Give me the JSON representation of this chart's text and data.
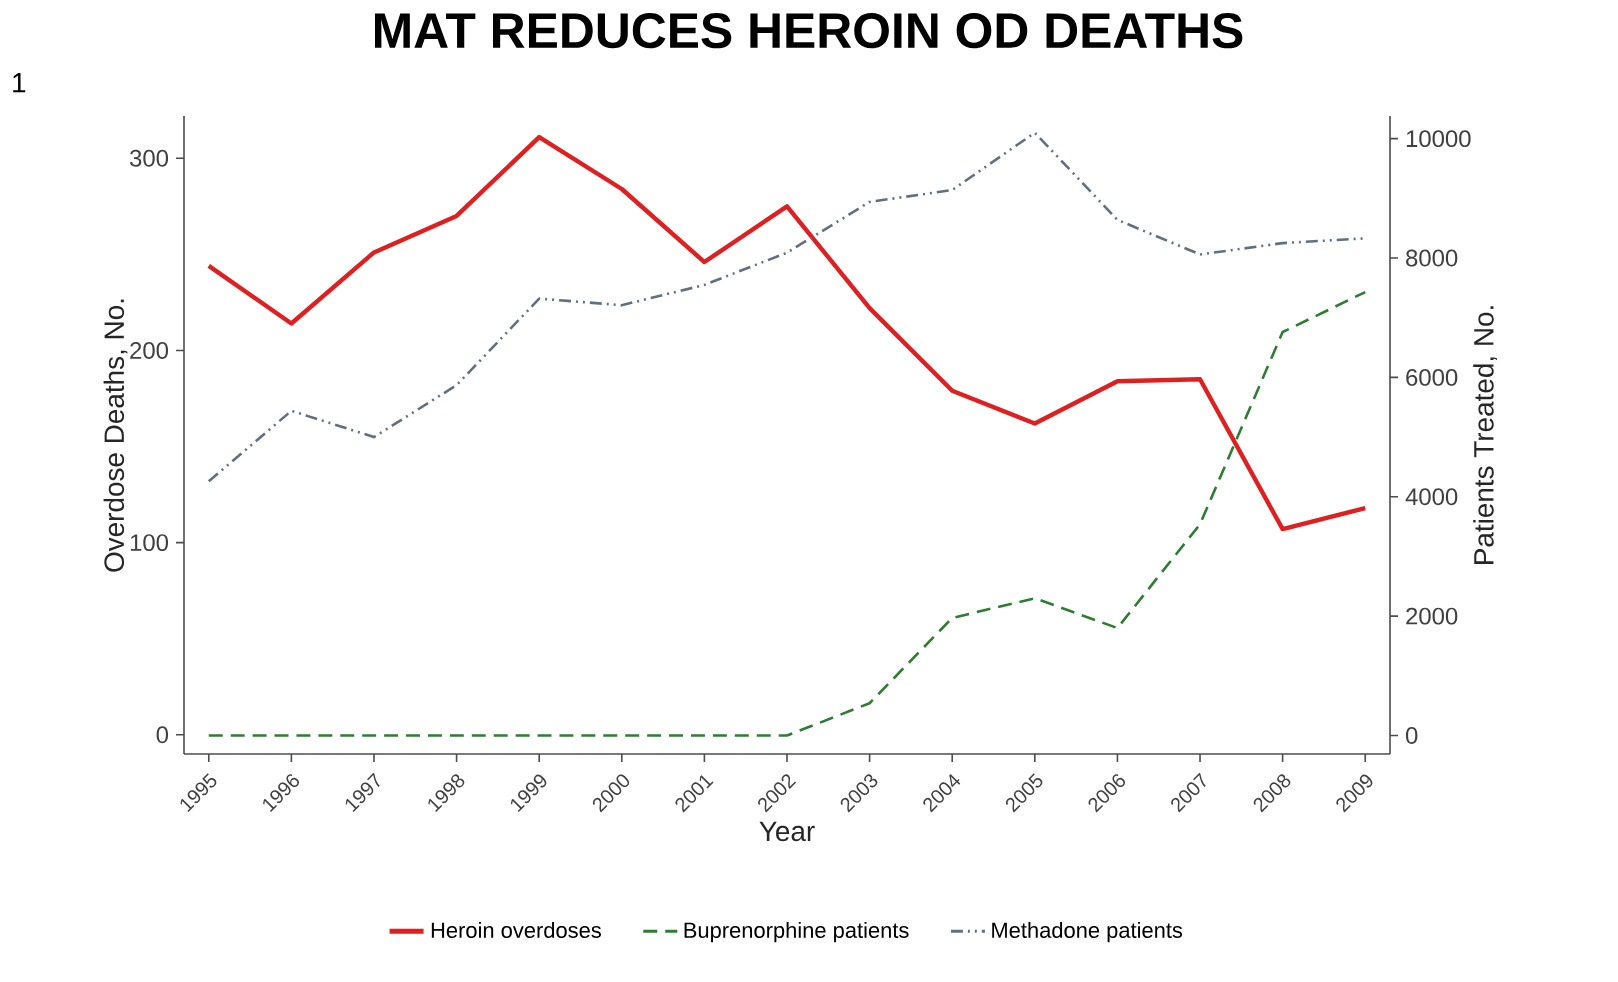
{
  "chart_data": {
    "type": "line",
    "title": "MAT REDUCES HEROIN OD DEATHS",
    "xlabel": "Year",
    "ylabel": "Overdose Deaths, No.",
    "y2label": "Patients Treated, No.",
    "annotations": [
      "1"
    ],
    "x": [
      1995,
      1996,
      1997,
      1998,
      1999,
      2000,
      2001,
      2002,
      2003,
      2004,
      2005,
      2006,
      2007,
      2008,
      2009
    ],
    "xlim": [
      1994.7,
      2009.3
    ],
    "xticks": [
      1995,
      1996,
      1997,
      1998,
      1999,
      2000,
      2001,
      2002,
      2003,
      2004,
      2005,
      2006,
      2007,
      2008,
      2009
    ],
    "ylim": [
      -10,
      322
    ],
    "yticks": [
      0,
      100,
      200,
      300
    ],
    "y2lim": [
      -310,
      10380
    ],
    "y2ticks": [
      0,
      2000,
      4000,
      6000,
      8000,
      10000
    ],
    "series": [
      {
        "name": "Heroin overdoses",
        "color": "#e02020",
        "line_style": "solid",
        "values": [
          244,
          214,
          251,
          270,
          311,
          284,
          246,
          275,
          222,
          179,
          162,
          184,
          185,
          107,
          118
        ]
      },
      {
        "name": "Buprenorphine patients",
        "color": "#2e7d32",
        "line_style": "dashed",
        "axis": "y2",
        "values": [
          0,
          0,
          0,
          0,
          0,
          0,
          0,
          0,
          540,
          1970,
          2300,
          1800,
          3540,
          6760,
          7430
        ]
      },
      {
        "name": "Methadone patients",
        "color": "#607080",
        "line_style": "dotted",
        "axis": "y2",
        "values": [
          4260,
          5440,
          5000,
          5870,
          7320,
          7210,
          7550,
          8090,
          8940,
          9140,
          10100,
          8640,
          8060,
          8250,
          8330
        ]
      }
    ],
    "legend": "bottom",
    "grid": false,
    "marker": "none"
  }
}
